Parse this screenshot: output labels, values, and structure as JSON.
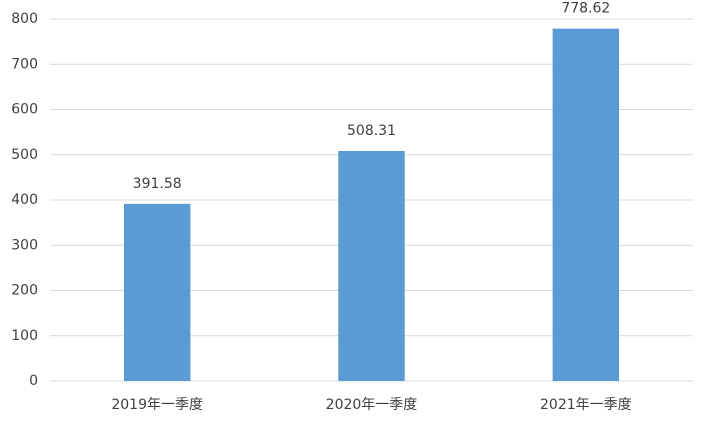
{
  "chart_data": {
    "type": "bar",
    "categories": [
      "2019年一季度",
      "2020年一季度",
      "2021年一季度"
    ],
    "values": [
      391.58,
      508.31,
      778.62
    ],
    "color": "#5b9bd5",
    "ylim": [
      0,
      800
    ],
    "yticks": [
      0,
      100,
      200,
      300,
      400,
      500,
      600,
      700,
      800
    ],
    "grid": true
  }
}
